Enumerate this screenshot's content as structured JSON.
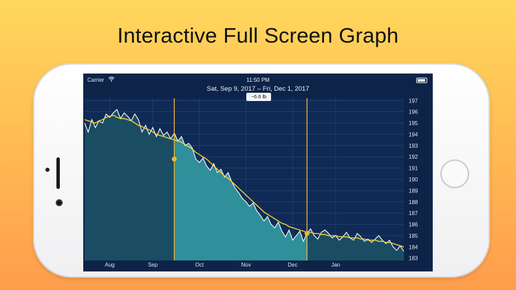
{
  "headline": "Interactive Full Screen Graph",
  "status_bar": {
    "carrier": "Carrier",
    "time": "11:50 PM"
  },
  "date_range": "Sat, Sep 9, 2017 – Fri, Dec 1, 2017",
  "delta_badge": "−6.6 lb",
  "chart_data": {
    "type": "area",
    "title": "",
    "xlabel": "",
    "ylabel": "",
    "x_tick_labels": [
      "Aug",
      "Sep",
      "Oct",
      "Nov",
      "Dec",
      "Jan"
    ],
    "y_tick_labels": [
      "197",
      "196",
      "195",
      "194",
      "193",
      "192",
      "191",
      "190",
      "189",
      "188",
      "187",
      "186",
      "185",
      "184",
      "183"
    ],
    "ylim": [
      182.8,
      197.2
    ],
    "grid": true,
    "selection": {
      "start": "Sep 9, 2017",
      "end": "Dec 1, 2017",
      "start_value": 191.8,
      "end_value": 185.2
    },
    "colors": {
      "raw_line": "#ffffff",
      "trend_line": "#f3d23a",
      "fill": "#1a4d63",
      "selected_fill": "#2f8f9a",
      "marker": "#f1b33a"
    },
    "series": [
      {
        "values": [
          195.0,
          194.2,
          195.3,
          194.6,
          195.2,
          195.0,
          195.8,
          195.5,
          195.9,
          196.2,
          195.4,
          195.9,
          195.6,
          195.2,
          195.8,
          195.3,
          194.2,
          194.8,
          194.0,
          194.6,
          193.8,
          194.5,
          193.9,
          194.2,
          193.6,
          194.1,
          193.4,
          193.8,
          193.0,
          193.2,
          192.8,
          191.8,
          191.5,
          191.9,
          191.2,
          190.8,
          191.4,
          190.6,
          190.9,
          190.2,
          190.6,
          189.8,
          189.2,
          188.8,
          188.3,
          188.0,
          187.6,
          187.9,
          187.2,
          186.8,
          186.3,
          186.7,
          186.0,
          185.7,
          186.2,
          185.4,
          184.9,
          185.5,
          184.6,
          185.0,
          185.4,
          184.5,
          185.2,
          185.6,
          185.0,
          184.7,
          185.3,
          185.5,
          185.2,
          184.8,
          185.0,
          184.6,
          184.9,
          185.3,
          184.8,
          184.6,
          185.2,
          184.9,
          184.5,
          184.7,
          184.4,
          184.7,
          185.0,
          184.6,
          184.3,
          184.6,
          184.0,
          183.7,
          184.1,
          183.6
        ]
      },
      {
        "values": [
          195.3,
          195.2,
          195.1,
          195.0,
          195.2,
          195.3,
          195.5,
          195.6,
          195.7,
          195.5,
          195.4,
          195.4,
          195.3,
          195.2,
          195.0,
          194.8,
          194.7,
          194.5,
          194.4,
          194.2,
          194.0,
          193.9,
          193.8,
          193.7,
          193.6,
          193.5,
          193.4,
          193.3,
          193.1,
          192.9,
          192.7,
          192.4,
          192.2,
          192.0,
          191.8,
          191.5,
          191.2,
          190.9,
          190.6,
          190.3,
          190.1,
          189.8,
          189.5,
          189.2,
          188.9,
          188.6,
          188.3,
          188.0,
          187.7,
          187.4,
          187.1,
          186.9,
          186.7,
          186.5,
          186.3,
          186.1,
          186.0,
          185.8,
          185.7,
          185.6,
          185.5,
          185.4,
          185.3,
          185.3,
          185.2,
          185.2,
          185.1,
          185.1,
          185.0,
          185.0,
          185.0,
          184.9,
          184.9,
          184.9,
          184.8,
          184.8,
          184.8,
          184.7,
          184.7,
          184.6,
          184.6,
          184.6,
          184.5,
          184.5,
          184.4,
          184.4,
          184.3,
          184.2,
          184.1,
          184.0
        ]
      }
    ]
  }
}
